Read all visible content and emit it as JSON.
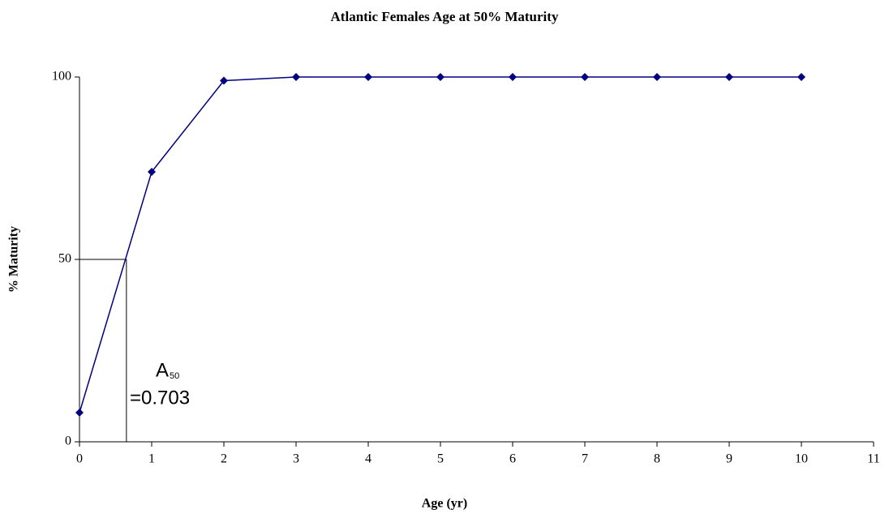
{
  "chart_data": {
    "type": "line",
    "title": "Atlantic Females Age at 50% Maturity",
    "x_label": "Age (yr)",
    "y_label": "% Maturity",
    "x": [
      0,
      1,
      2,
      3,
      4,
      5,
      6,
      7,
      8,
      9,
      10
    ],
    "series": [
      {
        "color": "#000080",
        "values": [
          8,
          74,
          99,
          100,
          100,
          100,
          100,
          100,
          100,
          100,
          100
        ]
      }
    ],
    "xlim": [
      0,
      11
    ],
    "xticks": [
      0,
      1,
      2,
      3,
      4,
      5,
      6,
      7,
      8,
      9,
      10,
      11
    ],
    "ylim": [
      0,
      100
    ],
    "yticks": [
      0,
      50,
      100
    ],
    "reference_point": {
      "x": 0.65,
      "y": 50
    },
    "annotation": {
      "text": "A",
      "subscript": "50",
      "value_text": "=0.703"
    }
  }
}
